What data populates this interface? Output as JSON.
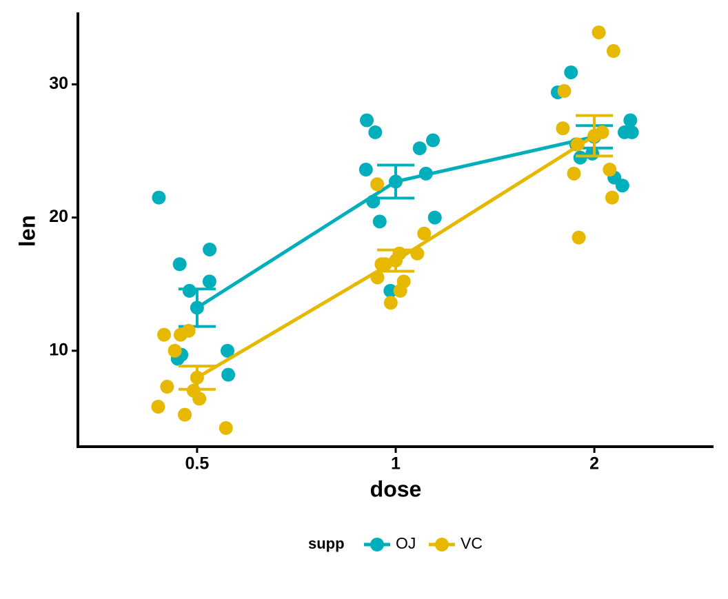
{
  "chart_data": {
    "type": "line",
    "x_label": "dose",
    "y_label": "len",
    "categories": [
      "0.5",
      "1",
      "2"
    ],
    "ylim": [
      2.8,
      35.4
    ],
    "yticks": [
      10,
      20,
      30
    ],
    "legend_title": "supp",
    "legend_position": "bottom",
    "series": [
      {
        "name": "OJ",
        "color": "#00AFBB",
        "points": [
          [
            15.2,
            21.5,
            17.6,
            9.7,
            14.5,
            10,
            8.2,
            9.4,
            16.5,
            9.7
          ],
          [
            19.7,
            23.3,
            23.6,
            26.4,
            20,
            25.2,
            25.8,
            21.2,
            14.5,
            27.3
          ],
          [
            25.5,
            26.4,
            22.4,
            24.5,
            24.8,
            30.9,
            26.4,
            27.3,
            29.4,
            23
          ]
        ],
        "values": [
          13.23,
          22.7,
          26.06
        ],
        "errors": [
          1.41,
          1.24,
          0.84
        ]
      },
      {
        "name": "VC",
        "color": "#E7B800",
        "points": [
          [
            4.2,
            11.5,
            7.3,
            5.8,
            6.4,
            10,
            11.2,
            11.2,
            5.2,
            7
          ],
          [
            16.5,
            16.5,
            15.2,
            17.3,
            22.5,
            17.3,
            13.6,
            14.5,
            18.8,
            15.5
          ],
          [
            23.6,
            18.5,
            33.9,
            25.5,
            26.4,
            32.5,
            26.7,
            21.5,
            23.3,
            29.5
          ]
        ],
        "values": [
          7.98,
          16.77,
          26.14
        ],
        "errors": [
          0.87,
          0.8,
          1.52
        ]
      }
    ]
  }
}
